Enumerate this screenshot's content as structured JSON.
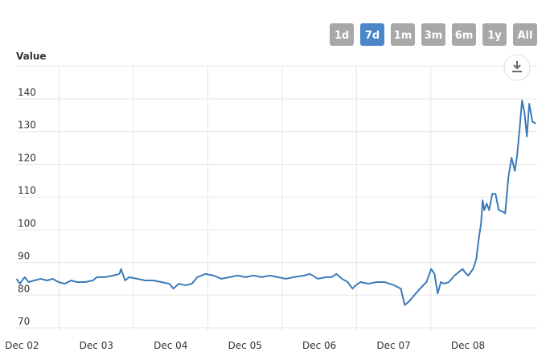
{
  "range_selector": {
    "buttons": [
      "1d",
      "7d",
      "1m",
      "3m",
      "6m",
      "1y",
      "All"
    ],
    "selected": 1
  },
  "chart_data": {
    "type": "line",
    "y_label": "Value",
    "x": [
      2.427,
      2.47,
      2.535,
      2.589,
      2.665,
      2.751,
      2.838,
      2.914,
      2.989,
      3.076,
      3.162,
      3.238,
      3.346,
      3.454,
      3.508,
      3.616,
      3.724,
      3.811,
      3.832,
      3.886,
      3.941,
      4.049,
      4.157,
      4.265,
      4.373,
      4.481,
      4.535,
      4.611,
      4.697,
      4.784,
      4.859,
      4.968,
      5.076,
      5.184,
      5.292,
      5.4,
      5.508,
      5.616,
      5.724,
      5.832,
      5.941,
      6.049,
      6.157,
      6.297,
      6.373,
      6.481,
      6.589,
      6.665,
      6.73,
      6.805,
      6.881,
      6.946,
      6.989,
      7.054,
      7.162,
      7.27,
      7.378,
      7.508,
      7.595,
      7.649,
      7.703,
      7.778,
      7.854,
      7.941,
      8.005,
      8.049,
      8.092,
      8.135,
      8.178,
      8.243,
      8.319,
      8.373,
      8.427,
      8.459,
      8.503,
      8.568,
      8.611,
      8.643,
      8.676,
      8.697,
      8.719,
      8.751,
      8.784,
      8.827,
      8.87,
      8.914,
      8.968,
      9.0,
      9.043,
      9.086,
      9.13,
      9.162,
      9.195,
      9.227,
      9.259,
      9.292,
      9.324,
      9.368,
      9.411
    ],
    "series": [
      {
        "color": "#3d7ab8",
        "values": [
          85,
          83.5,
          85.5,
          84,
          84.5,
          85,
          84.5,
          85,
          84,
          83.5,
          84.5,
          84,
          84,
          84.5,
          85.5,
          85.5,
          86,
          86.5,
          88,
          84.5,
          85.5,
          85,
          84.5,
          84.5,
          84,
          83.5,
          82,
          83.5,
          83,
          83.5,
          85.5,
          86.5,
          86,
          85,
          85.5,
          86,
          85.5,
          86,
          85.5,
          86,
          85.5,
          85,
          85.5,
          86,
          86.5,
          85,
          85.5,
          85.5,
          86.5,
          85,
          84,
          82,
          83,
          84,
          83.5,
          84,
          84,
          83,
          82,
          77,
          78,
          80,
          82,
          84,
          88,
          86.5,
          80.5,
          84,
          83.5,
          84,
          86,
          87,
          88,
          87,
          86,
          88,
          91,
          97,
          102,
          109,
          106,
          108,
          106,
          111,
          111,
          106,
          105.5,
          105,
          116,
          122,
          118,
          123,
          131,
          139.5,
          136,
          128.5,
          138.5,
          133,
          132.5
        ]
      }
    ],
    "xlim": [
      2.42,
      9.43
    ],
    "xticks": [
      {
        "value": 2,
        "label": "Dec 02"
      },
      {
        "value": 3,
        "label": "Dec 03"
      },
      {
        "value": 4,
        "label": "Dec 04"
      },
      {
        "value": 5,
        "label": "Dec 05"
      },
      {
        "value": 6,
        "label": "Dec 06"
      },
      {
        "value": 7,
        "label": "Dec 07"
      },
      {
        "value": 8,
        "label": "Dec 08"
      }
    ],
    "ylim": [
      68.8,
      150
    ],
    "yticks": [
      70,
      80,
      90,
      100,
      110,
      120,
      130,
      140
    ],
    "grid": true
  }
}
